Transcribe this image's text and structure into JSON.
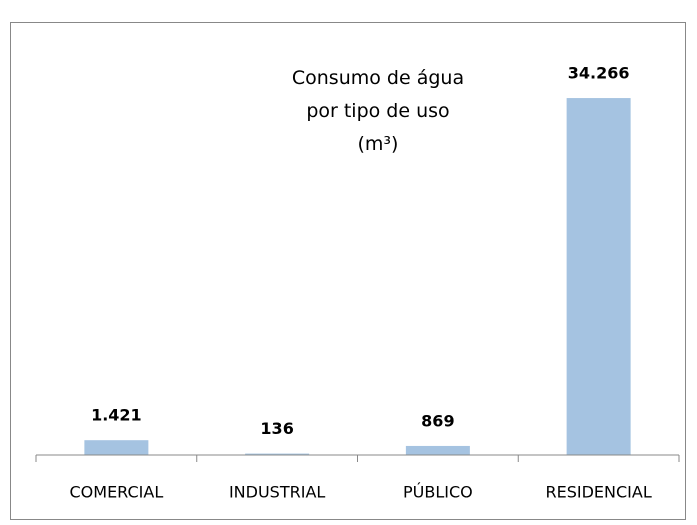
{
  "chart_data": {
    "type": "bar",
    "title": "Consumo de água por tipo de uso (m³)",
    "categories": [
      "COMERCIAL",
      "INDUSTRIAL",
      "PÚBLICO",
      "RESIDENCIAL"
    ],
    "values": [
      1421,
      136,
      869,
      34266
    ],
    "value_labels": [
      "1.421",
      "136",
      "869",
      "34.266"
    ],
    "color": "#a5c3e1",
    "ylim": [
      0,
      36000
    ]
  }
}
